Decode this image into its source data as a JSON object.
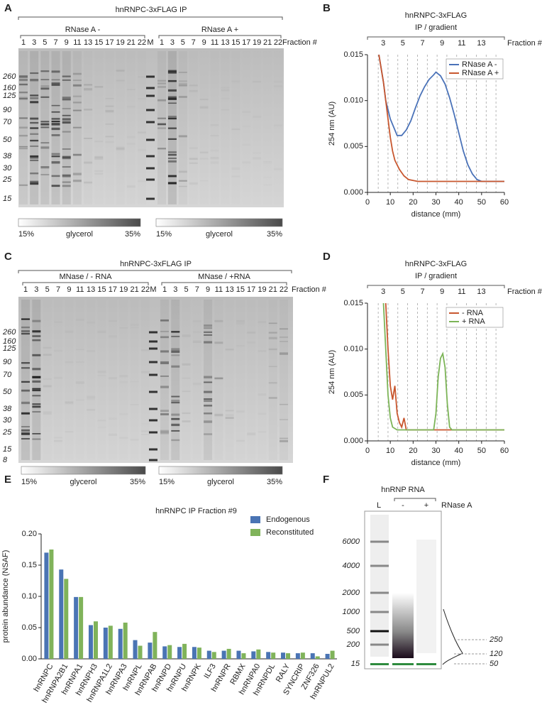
{
  "panel_letters": [
    "A",
    "B",
    "C",
    "D",
    "E",
    "F"
  ],
  "gels": [
    {
      "title": "hnRNPC-3xFLAG IP",
      "groups": [
        "RNase A -",
        "RNase A +"
      ],
      "lanes_left": [
        "1",
        "3",
        "5",
        "7",
        "9",
        "11",
        "13",
        "15",
        "17",
        "19",
        "21",
        "22"
      ],
      "marker_lane": "M",
      "lanes_right": [
        "1",
        "3",
        "5",
        "7",
        "9",
        "11",
        "13",
        "15",
        "17",
        "19",
        "21",
        "22"
      ],
      "fraction_label": "Fraction #",
      "markers": [
        "260",
        "160",
        "125",
        "90",
        "70",
        "50",
        "38",
        "30",
        "25",
        "15"
      ],
      "glycerol": [
        {
          "start": "15%",
          "label": "glycerol",
          "end": "35%"
        },
        {
          "start": "15%",
          "label": "glycerol",
          "end": "35%"
        }
      ]
    },
    {
      "title": "hnRNPC-3xFLAG IP",
      "groups": [
        "MNase / - RNA",
        "MNase / +RNA"
      ],
      "lanes_left": [
        "1",
        "3",
        "5",
        "7",
        "9",
        "11",
        "13",
        "15",
        "17",
        "19",
        "21",
        "22"
      ],
      "marker_lane": "M",
      "lanes_right": [
        "1",
        "3",
        "5",
        "7",
        "9",
        "11",
        "13",
        "15",
        "17",
        "19",
        "21",
        "22"
      ],
      "fraction_label": "Fraction #",
      "markers": [
        "260",
        "160",
        "125",
        "90",
        "70",
        "50",
        "38",
        "30",
        "25",
        "15",
        "8"
      ],
      "glycerol": [
        {
          "start": "15%",
          "label": "glycerol",
          "end": "35%"
        },
        {
          "start": "15%",
          "label": "glycerol",
          "end": "35%"
        }
      ]
    },
    {
      "title": "hnRNP RNA",
      "lanes": [
        "L",
        "-",
        "+"
      ],
      "treatment": "RNase A",
      "ladder": [
        "6000",
        "4000",
        "2000",
        "1000",
        "500",
        "200",
        "15"
      ],
      "trace_labels": [
        "250",
        "120",
        "50"
      ]
    }
  ],
  "chart_data": [
    {
      "type": "line",
      "title": "hnRNPC-3xFLAG",
      "subtitle": "IP / gradient",
      "x_label": "distance (mm)",
      "y_label": "254 nm (AU)",
      "xlim": [
        0,
        60
      ],
      "xticks": [
        0,
        10,
        20,
        30,
        40,
        50,
        60
      ],
      "ylim": [
        0,
        0.015
      ],
      "yticks": [
        {
          "value": 0,
          "label": "0.000"
        },
        {
          "value": 0.005,
          "label": "0.005"
        },
        {
          "value": 0.01,
          "label": "0.010"
        },
        {
          "value": 0.015,
          "label": "0.015"
        }
      ],
      "top_axis_label": "Fraction #",
      "top_ticks": [
        {
          "value": 6.9,
          "label": "3"
        },
        {
          "value": 15.5,
          "label": "5"
        },
        {
          "value": 24.1,
          "label": "7"
        },
        {
          "value": 32.7,
          "label": "9"
        },
        {
          "value": 41.3,
          "label": "11"
        },
        {
          "value": 49.9,
          "label": "13"
        }
      ],
      "fraction_lines": [
        4.7,
        9,
        13.3,
        17.6,
        21.9,
        26.2,
        30.5,
        34.8,
        39.1,
        43.4,
        47.7,
        52,
        56.3
      ],
      "legend": "upper right",
      "series": [
        {
          "name": "RNase A -",
          "color": "#4a72b8",
          "x": [
            5,
            7,
            8,
            9,
            10,
            12,
            13,
            15,
            17,
            19,
            21,
            23,
            25,
            27,
            29,
            30,
            32,
            34,
            36,
            38,
            40,
            42,
            44,
            46,
            48,
            50,
            55,
            59,
            60
          ],
          "values": [
            0.015,
            0.012,
            0.01,
            0.009,
            0.008,
            0.0068,
            0.0062,
            0.0062,
            0.0068,
            0.0078,
            0.0092,
            0.0105,
            0.0115,
            0.0123,
            0.0128,
            0.0131,
            0.0127,
            0.0118,
            0.0103,
            0.0085,
            0.0065,
            0.0045,
            0.003,
            0.002,
            0.0014,
            0.0012,
            0.0012,
            0.0012,
            0.0012
          ]
        },
        {
          "name": "RNase A +",
          "color": "#c8572f",
          "x": [
            5,
            7,
            8,
            9,
            10,
            11,
            12,
            14,
            16,
            18,
            22,
            30,
            60
          ],
          "values": [
            0.015,
            0.012,
            0.01,
            0.008,
            0.006,
            0.0045,
            0.0035,
            0.0025,
            0.0018,
            0.0014,
            0.0012,
            0.0012,
            0.0012
          ]
        }
      ]
    },
    {
      "type": "line",
      "title": "hnRNPC-3xFLAG",
      "subtitle": "IP / gradient",
      "x_label": "distance (mm)",
      "y_label": "254 nm (AU)",
      "xlim": [
        0,
        60
      ],
      "xticks": [
        0,
        10,
        20,
        30,
        40,
        50,
        60
      ],
      "ylim": [
        0,
        0.015
      ],
      "yticks": [
        {
          "value": 0,
          "label": "0.000"
        },
        {
          "value": 0.005,
          "label": "0.005"
        },
        {
          "value": 0.01,
          "label": "0.010"
        },
        {
          "value": 0.015,
          "label": "0.015"
        }
      ],
      "top_axis_label": "Fraction #",
      "top_ticks": [
        {
          "value": 6.9,
          "label": "3"
        },
        {
          "value": 15.5,
          "label": "5"
        },
        {
          "value": 24.1,
          "label": "7"
        },
        {
          "value": 32.7,
          "label": "9"
        },
        {
          "value": 41.3,
          "label": "11"
        },
        {
          "value": 49.9,
          "label": "13"
        }
      ],
      "fraction_lines": [
        4.7,
        9,
        13.3,
        17.6,
        21.9,
        26.2,
        30.5,
        34.8,
        39.1,
        43.4,
        47.7,
        52,
        56.3
      ],
      "legend": "upper right",
      "series": [
        {
          "name": "- RNA",
          "color": "#c8572f",
          "x": [
            8,
            9,
            10,
            11,
            12,
            13,
            14,
            15,
            16,
            17,
            60
          ],
          "values": [
            0.015,
            0.01,
            0.006,
            0.0045,
            0.006,
            0.003,
            0.002,
            0.0015,
            0.0025,
            0.0012,
            0.0012
          ]
        },
        {
          "name": "+ RNA",
          "color": "#7cb457",
          "x": [
            7,
            8,
            9,
            10,
            11,
            13,
            29,
            30,
            31,
            32,
            33,
            34,
            35,
            36,
            37,
            60
          ],
          "values": [
            0.015,
            0.01,
            0.005,
            0.0025,
            0.0015,
            0.0012,
            0.0012,
            0.003,
            0.007,
            0.009,
            0.0095,
            0.008,
            0.004,
            0.0015,
            0.0012,
            0.0012
          ]
        }
      ]
    },
    {
      "type": "bar",
      "title": "hnRNPC IP Fraction #9",
      "y_label": "protein abundance (NSAF)",
      "categories": [
        "hnRNPC",
        "hnRNPA2B1",
        "hnRNPA1",
        "hnRNPH3",
        "hnRNPA1L2",
        "hnRNPA3",
        "hnRNPL",
        "hnRNPAB",
        "hnRNPD",
        "hnRNPU",
        "hnRNPK",
        "ILF3",
        "hnRNPR",
        "RBMX",
        "hnRNPA0",
        "hnRNPDL",
        "RALY",
        "SYNCRIP",
        "ZNF326",
        "hnRNPUL2"
      ],
      "ylim": [
        0,
        0.2
      ],
      "yticks": [
        {
          "value": 0,
          "label": "0.00"
        },
        {
          "value": 0.05,
          "label": "0.05"
        },
        {
          "value": 0.1,
          "label": "0.10"
        },
        {
          "value": 0.15,
          "label": "0.15"
        },
        {
          "value": 0.2,
          "label": "0.20"
        }
      ],
      "legend": "upper right",
      "series": [
        {
          "name": "Endogenous",
          "color": "#4a74b4",
          "values": [
            0.17,
            0.143,
            0.099,
            0.054,
            0.05,
            0.048,
            0.03,
            0.026,
            0.02,
            0.019,
            0.019,
            0.013,
            0.013,
            0.013,
            0.012,
            0.011,
            0.01,
            0.009,
            0.009,
            0.008
          ]
        },
        {
          "name": "Reconstituted",
          "color": "#80b35a",
          "values": [
            0.175,
            0.128,
            0.099,
            0.06,
            0.053,
            0.058,
            0.021,
            0.043,
            0.022,
            0.024,
            0.018,
            0.011,
            0.016,
            0.009,
            0.015,
            0.01,
            0.009,
            0.01,
            0.004,
            0.013
          ]
        }
      ]
    }
  ]
}
